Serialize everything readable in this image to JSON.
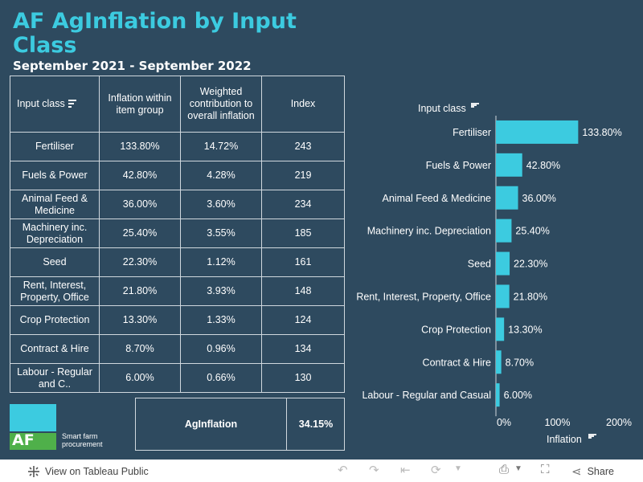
{
  "header": {
    "title": "AF AgInflation by Input Class",
    "subtitle": "September 2021 - September 2022"
  },
  "table": {
    "columns": [
      "Input class",
      "Inflation within item group",
      "Weighted contribution to overall inflation",
      "Index"
    ],
    "rows": [
      [
        "Fertiliser",
        "133.80%",
        "14.72%",
        "243"
      ],
      [
        "Fuels & Power",
        "42.80%",
        "4.28%",
        "219"
      ],
      [
        "Animal Feed & Medicine",
        "36.00%",
        "3.60%",
        "234"
      ],
      [
        "Machinery inc. Depreciation",
        "25.40%",
        "3.55%",
        "185"
      ],
      [
        "Seed",
        "22.30%",
        "1.12%",
        "161"
      ],
      [
        "Rent, Interest, Property, Office",
        "21.80%",
        "3.93%",
        "148"
      ],
      [
        "Crop Protection",
        "13.30%",
        "1.33%",
        "124"
      ],
      [
        "Contract & Hire",
        "8.70%",
        "0.96%",
        "134"
      ],
      [
        "Labour - Regular and C..",
        "6.00%",
        "0.66%",
        "130"
      ]
    ]
  },
  "summary": {
    "label": "AgInflation",
    "value": "34.15%"
  },
  "logo": {
    "mark": "AF",
    "text_line1": "Smart farm",
    "text_line2": "procurement",
    "colors": {
      "top": "#3ccbe0",
      "bottom": "#4fb04a"
    }
  },
  "chart_data": {
    "type": "bar",
    "orientation": "horizontal",
    "title": "",
    "ylabel": "Input class",
    "xlabel": "Inflation",
    "categories": [
      "Fertiliser",
      "Fuels & Power",
      "Animal Feed & Medicine",
      "Machinery inc. Depreciation",
      "Seed",
      "Rent, Interest, Property, Office",
      "Crop Protection",
      "Contract & Hire",
      "Labour - Regular and Casual"
    ],
    "values": [
      133.8,
      42.8,
      36.0,
      25.4,
      22.3,
      21.8,
      13.3,
      8.7,
      6.0
    ],
    "value_labels": [
      "133.80%",
      "42.80%",
      "36.00%",
      "25.40%",
      "22.30%",
      "21.80%",
      "13.30%",
      "8.70%",
      "6.00%"
    ],
    "xlim": [
      0,
      200
    ],
    "xticks": [
      0,
      100,
      200
    ],
    "xtick_labels": [
      "0%",
      "100%",
      "200%"
    ],
    "bar_color": "#3ccbe0",
    "grid": false
  },
  "toolbar": {
    "view_label": "View on Tableau Public",
    "share_label": "Share"
  }
}
